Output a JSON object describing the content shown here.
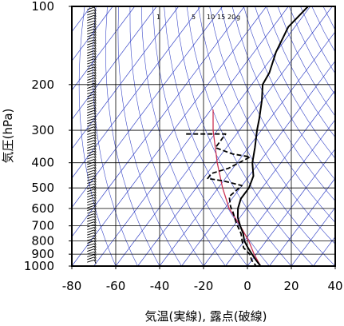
{
  "chart_data": {
    "type": "skew-t",
    "ylabel": "気圧(hPa)",
    "xlabel": "気温(実線), 露点(破線)",
    "x_ticks": [
      "-80",
      "-60",
      "-40",
      "-20",
      "0",
      "20",
      "40"
    ],
    "x_tick_values": [
      -80,
      -60,
      -40,
      -20,
      0,
      20,
      40
    ],
    "xlim": [
      -80,
      40
    ],
    "y_ticks": [
      "100",
      "200",
      "300",
      "400",
      "500",
      "600",
      "700",
      "800",
      "900",
      "1000"
    ],
    "y_tick_values": [
      100,
      200,
      300,
      400,
      500,
      600,
      700,
      800,
      900,
      1000
    ],
    "ylim": [
      1000,
      100
    ],
    "y_scale": "log",
    "grid": true,
    "mixing_ratio_labels": [
      "1",
      "5",
      "10",
      "15",
      "20",
      "g"
    ],
    "temperature": {
      "style": "solid",
      "color": "#000000",
      "points": [
        {
          "p": 100,
          "t": -61
        },
        {
          "p": 120,
          "t": -63
        },
        {
          "p": 150,
          "t": -60
        },
        {
          "p": 180,
          "t": -56
        },
        {
          "p": 200,
          "t": -55
        },
        {
          "p": 230,
          "t": -50
        },
        {
          "p": 270,
          "t": -45
        },
        {
          "p": 300,
          "t": -42
        },
        {
          "p": 350,
          "t": -37
        },
        {
          "p": 400,
          "t": -33
        },
        {
          "p": 450,
          "t": -28
        },
        {
          "p": 500,
          "t": -26
        },
        {
          "p": 550,
          "t": -26
        },
        {
          "p": 600,
          "t": -24
        },
        {
          "p": 650,
          "t": -21
        },
        {
          "p": 700,
          "t": -17
        },
        {
          "p": 750,
          "t": -13
        },
        {
          "p": 800,
          "t": -10
        },
        {
          "p": 850,
          "t": -6
        },
        {
          "p": 900,
          "t": -2
        },
        {
          "p": 950,
          "t": 2
        },
        {
          "p": 1000,
          "t": 6
        }
      ]
    },
    "dewpoint": {
      "style": "dashed",
      "color": "#000000",
      "points": [
        {
          "p": 310,
          "t": -73
        },
        {
          "p": 310,
          "t": -55
        },
        {
          "p": 350,
          "t": -55
        },
        {
          "p": 370,
          "t": -45
        },
        {
          "p": 380,
          "t": -36
        },
        {
          "p": 420,
          "t": -42
        },
        {
          "p": 440,
          "t": -48
        },
        {
          "p": 460,
          "t": -48
        },
        {
          "p": 470,
          "t": -40
        },
        {
          "p": 490,
          "t": -30
        },
        {
          "p": 540,
          "t": -32
        },
        {
          "p": 590,
          "t": -28
        },
        {
          "p": 620,
          "t": -25
        },
        {
          "p": 680,
          "t": -20
        },
        {
          "p": 750,
          "t": -14
        },
        {
          "p": 800,
          "t": -11
        },
        {
          "p": 850,
          "t": -8
        },
        {
          "p": 900,
          "t": -3
        },
        {
          "p": 950,
          "t": 0
        },
        {
          "p": 1000,
          "t": 4
        }
      ]
    },
    "parcel": {
      "style": "solid",
      "color": "#cc3355",
      "points": [
        {
          "p": 1000,
          "t": 6
        },
        {
          "p": 900,
          "t": -1
        },
        {
          "p": 800,
          "t": -8
        },
        {
          "p": 700,
          "t": -17
        },
        {
          "p": 600,
          "t": -28
        },
        {
          "p": 500,
          "t": -38
        },
        {
          "p": 400,
          "t": -49
        },
        {
          "p": 300,
          "t": -62
        },
        {
          "p": 250,
          "t": -69
        }
      ]
    },
    "wind_barbs": {
      "column": "left",
      "x_value": -73,
      "pressure_from": 100,
      "pressure_to": 1000
    }
  }
}
